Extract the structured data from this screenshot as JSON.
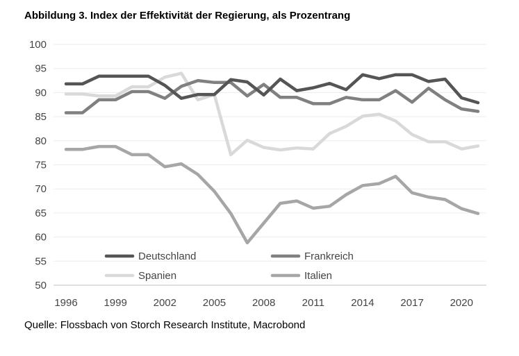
{
  "chart_data": {
    "type": "line",
    "title": "Abbildung 3. Index der Effektivität der Regierung, als Prozentrang",
    "source": "Quelle: Flossbach von Storch Research Institute, Macrobond",
    "xlabel": "",
    "ylabel": "",
    "xlim": [
      1996,
      2021
    ],
    "ylim": [
      50,
      100
    ],
    "x_ticks": [
      1996,
      1999,
      2002,
      2005,
      2008,
      2011,
      2014,
      2017,
      2020
    ],
    "y_ticks": [
      50,
      55,
      60,
      65,
      70,
      75,
      80,
      85,
      90,
      95,
      100
    ],
    "grid": true,
    "x": [
      1996,
      1997,
      1998,
      1999,
      2000,
      2001,
      2002,
      2003,
      2004,
      2005,
      2006,
      2007,
      2008,
      2009,
      2010,
      2011,
      2012,
      2013,
      2014,
      2015,
      2016,
      2017,
      2018,
      2019,
      2020,
      2021
    ],
    "series": [
      {
        "name": "Deutschland",
        "color": "#555555",
        "values": [
          91.8,
          91.8,
          93.4,
          93.4,
          93.4,
          93.4,
          91.5,
          88.8,
          89.6,
          89.6,
          92.7,
          92.2,
          89.5,
          92.8,
          90.4,
          91.0,
          91.9,
          90.6,
          93.7,
          92.9,
          93.7,
          93.7,
          92.3,
          92.8,
          88.9,
          87.9
        ]
      },
      {
        "name": "Frankreich",
        "color": "#808080",
        "values": [
          85.8,
          85.8,
          88.5,
          88.5,
          90.2,
          90.2,
          88.8,
          91.3,
          92.5,
          92.1,
          92.1,
          89.3,
          91.7,
          89.0,
          89.0,
          87.7,
          87.7,
          89.0,
          88.5,
          88.5,
          90.4,
          88.0,
          90.9,
          88.5,
          86.6,
          86.1
        ]
      },
      {
        "name": "Spanien",
        "color": "#d9d9d9",
        "values": [
          89.7,
          89.7,
          89.3,
          89.3,
          91.2,
          91.2,
          93.2,
          94.0,
          88.5,
          89.6,
          77.1,
          80.1,
          78.6,
          78.1,
          78.5,
          78.3,
          81.5,
          83.0,
          85.1,
          85.5,
          84.1,
          81.3,
          79.8,
          79.8,
          78.3,
          78.9
        ]
      },
      {
        "name": "Italien",
        "color": "#a6a6a6",
        "values": [
          78.2,
          78.2,
          78.8,
          78.8,
          77.1,
          77.1,
          74.6,
          75.2,
          73.0,
          69.5,
          64.9,
          58.8,
          62.9,
          67.0,
          67.5,
          66.0,
          66.4,
          68.8,
          70.7,
          71.1,
          72.6,
          69.2,
          68.3,
          67.8,
          65.9,
          64.9
        ]
      }
    ],
    "legend": {
      "entries": [
        "Deutschland",
        "Frankreich",
        "Spanien",
        "Italien"
      ],
      "placement": "bottom-center"
    }
  }
}
